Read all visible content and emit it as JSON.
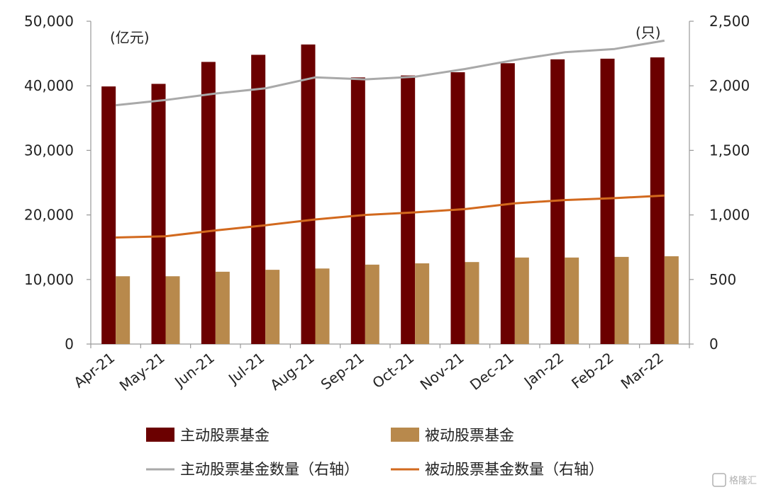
{
  "chart_data": {
    "type": "bar",
    "title": "",
    "categories": [
      "Apr-21",
      "May-21",
      "Jun-21",
      "Jul-21",
      "Aug-21",
      "Sep-21",
      "Oct-21",
      "Nov-21",
      "Dec-21",
      "Jan-22",
      "Feb-22",
      "Mar-22"
    ],
    "left_axis": {
      "unit_label": "(亿元)",
      "ylim": [
        0,
        50000
      ],
      "ticks": [
        "0",
        "10,000",
        "20,000",
        "30,000",
        "40,000",
        "50,000"
      ],
      "tick_values": [
        0,
        10000,
        20000,
        30000,
        40000,
        50000
      ]
    },
    "right_axis": {
      "unit_label": "(只)",
      "ylim": [
        0,
        2500
      ],
      "ticks": [
        "0",
        "500",
        "1,000",
        "1,500",
        "2,000",
        "2,500"
      ],
      "tick_values": [
        0,
        500,
        1000,
        1500,
        2000,
        2500
      ]
    },
    "series": [
      {
        "name": "主动股票基金",
        "kind": "bar",
        "axis": "left",
        "color": "#6b0000",
        "values": [
          39900,
          40300,
          43700,
          44800,
          46400,
          41300,
          41600,
          42100,
          43500,
          44100,
          44200,
          44400
        ]
      },
      {
        "name": "被动股票基金",
        "kind": "bar",
        "axis": "left",
        "color": "#b8894c",
        "values": [
          10500,
          10500,
          11200,
          11500,
          11700,
          12300,
          12500,
          12700,
          13400,
          13400,
          13500,
          13600
        ]
      },
      {
        "name": "主动股票基金数量（右轴）",
        "kind": "line",
        "axis": "right",
        "color": "#a9a9a9",
        "values": [
          1850,
          1890,
          1940,
          1980,
          2065,
          2050,
          2070,
          2130,
          2200,
          2260,
          2285,
          2350
        ]
      },
      {
        "name": "被动股票基金数量（右轴）",
        "kind": "line",
        "axis": "right",
        "color": "#d2691e",
        "values": [
          825,
          835,
          880,
          920,
          965,
          1000,
          1020,
          1045,
          1090,
          1115,
          1130,
          1150
        ]
      }
    ],
    "grid": false,
    "legend_position": "bottom"
  },
  "watermark": "格隆汇"
}
